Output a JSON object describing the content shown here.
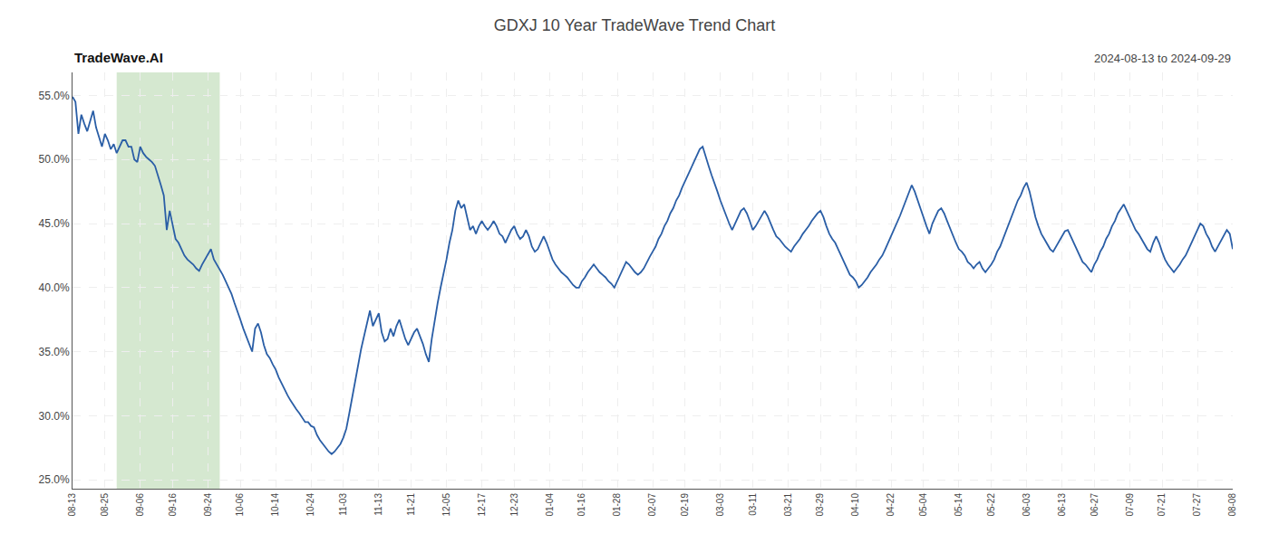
{
  "chart_data": {
    "type": "line",
    "title": "GDXJ 10 Year TradeWave Trend Chart",
    "subtitle": "2024-08-13 to 2024-09-29",
    "annotations": [
      {
        "text": "TradeWave.AI"
      }
    ],
    "color": "#2a5ea6",
    "line_style": "solid",
    "grid": true,
    "highlight_range": [
      15,
      50
    ],
    "highlight_color": "#d5e8d0",
    "ylim": [
      0.243,
      0.568
    ],
    "yticks": [
      {
        "value": 0.25,
        "label": "25.0%"
      },
      {
        "value": 0.3,
        "label": "30.0%"
      },
      {
        "value": 0.35,
        "label": "35.0%"
      },
      {
        "value": 0.4,
        "label": "40.0%"
      },
      {
        "value": 0.45,
        "label": "45.0%"
      },
      {
        "value": 0.5,
        "label": "50.0%"
      },
      {
        "value": 0.55,
        "label": "55.0%"
      }
    ],
    "categories": [
      "08-13",
      null,
      null,
      null,
      null,
      null,
      null,
      null,
      null,
      null,
      null,
      "08-25",
      null,
      null,
      null,
      null,
      null,
      null,
      null,
      null,
      null,
      null,
      null,
      "09-06",
      null,
      null,
      null,
      null,
      null,
      null,
      null,
      null,
      null,
      null,
      "09-16",
      null,
      null,
      null,
      null,
      null,
      null,
      null,
      null,
      null,
      null,
      null,
      "09-24",
      null,
      null,
      null,
      null,
      null,
      null,
      null,
      null,
      null,
      null,
      "10-06",
      null,
      null,
      null,
      null,
      null,
      null,
      null,
      null,
      null,
      null,
      null,
      "10-14",
      null,
      null,
      null,
      null,
      null,
      null,
      null,
      null,
      null,
      null,
      null,
      "10-24",
      null,
      null,
      null,
      null,
      null,
      null,
      null,
      null,
      null,
      null,
      "11-03",
      null,
      null,
      null,
      null,
      null,
      null,
      null,
      null,
      null,
      null,
      null,
      "11-13",
      null,
      null,
      null,
      null,
      null,
      null,
      null,
      null,
      null,
      null,
      "11-21",
      null,
      null,
      null,
      null,
      null,
      null,
      null,
      null,
      null,
      null,
      null,
      "12-05",
      null,
      null,
      null,
      null,
      null,
      null,
      null,
      null,
      null,
      null,
      null,
      "12-17",
      null,
      null,
      null,
      null,
      null,
      null,
      null,
      null,
      null,
      null,
      "12-23",
      null,
      null,
      null,
      null,
      null,
      null,
      null,
      null,
      null,
      null,
      null,
      "01-04",
      null,
      null,
      null,
      null,
      null,
      null,
      null,
      null,
      null,
      null,
      "01-16",
      null,
      null,
      null,
      null,
      null,
      null,
      null,
      null,
      null,
      null,
      null,
      "01-28",
      null,
      null,
      null,
      null,
      null,
      null,
      null,
      null,
      null,
      null,
      null,
      "02-07",
      null,
      null,
      null,
      null,
      null,
      null,
      null,
      null,
      null,
      null,
      "02-19",
      null,
      null,
      null,
      null,
      null,
      null,
      null,
      null,
      null,
      null,
      null,
      "03-03",
      null,
      null,
      null,
      null,
      null,
      null,
      null,
      null,
      null,
      null,
      "03-11",
      null,
      null,
      null,
      null,
      null,
      null,
      null,
      null,
      null,
      null,
      null,
      "03-21",
      null,
      null,
      null,
      null,
      null,
      null,
      null,
      null,
      null,
      null,
      "03-29",
      null,
      null,
      null,
      null,
      null,
      null,
      null,
      null,
      null,
      null,
      null,
      "04-10",
      null,
      null,
      null,
      null,
      null,
      null,
      null,
      null,
      null,
      null,
      null,
      "04-22",
      null,
      null,
      null,
      null,
      null,
      null,
      null,
      null,
      null,
      null,
      "05-04",
      null,
      null,
      null,
      null,
      null,
      null,
      null,
      null,
      null,
      null,
      null,
      "05-14",
      null,
      null,
      null,
      null,
      null,
      null,
      null,
      null,
      null,
      null,
      "05-22",
      null,
      null,
      null,
      null,
      null,
      null,
      null,
      null,
      null,
      null,
      null,
      "06-03",
      null,
      null,
      null,
      null,
      null,
      null,
      null,
      null,
      null,
      null,
      null,
      "06-13",
      null,
      null,
      null,
      null,
      null,
      null,
      null,
      null,
      null,
      null,
      "06-27",
      null,
      null,
      null,
      null,
      null,
      null,
      null,
      null,
      null,
      null,
      null,
      "07-09",
      null,
      null,
      null,
      null,
      null,
      null,
      null,
      null,
      null,
      null,
      "07-21",
      null,
      null,
      null,
      null,
      null,
      null,
      null,
      null,
      null,
      null,
      null,
      "07-27",
      null,
      null,
      null,
      null,
      null,
      null,
      null,
      null,
      null,
      null,
      null,
      "08-08"
    ],
    "values": [
      0.549,
      0.545,
      0.52,
      0.535,
      0.528,
      0.522,
      0.53,
      0.538,
      0.525,
      0.518,
      0.51,
      0.52,
      0.515,
      0.508,
      0.512,
      0.505,
      0.51,
      0.515,
      0.515,
      0.51,
      0.51,
      0.5,
      0.498,
      0.51,
      0.505,
      0.502,
      0.5,
      0.498,
      0.495,
      0.488,
      0.48,
      0.472,
      0.445,
      0.46,
      0.448,
      0.438,
      0.435,
      0.43,
      0.425,
      0.422,
      0.42,
      0.418,
      0.415,
      0.413,
      0.418,
      0.422,
      0.425,
      0.43,
      0.422,
      0.418,
      0.415,
      0.41,
      0.405,
      0.4,
      0.395,
      0.388,
      0.382,
      0.375,
      0.368,
      0.362,
      0.356,
      0.35,
      0.368,
      0.372,
      0.365,
      0.355,
      0.348,
      0.345,
      0.34,
      0.336,
      0.33,
      0.325,
      0.32,
      0.316,
      0.312,
      0.308,
      0.305,
      0.302,
      0.298,
      0.295,
      0.295,
      0.292,
      0.291,
      0.285,
      0.281,
      0.278,
      0.275,
      0.272,
      0.27,
      0.272,
      0.275,
      0.278,
      0.283,
      0.29,
      0.302,
      0.315,
      0.328,
      0.34,
      0.352,
      0.362,
      0.372,
      0.382,
      0.37,
      0.375,
      0.38,
      0.365,
      0.358,
      0.36,
      0.368,
      0.362,
      0.37,
      0.375,
      0.368,
      0.36,
      0.355,
      0.36,
      0.365,
      0.368,
      0.362,
      0.356,
      0.348,
      0.342,
      0.36,
      0.375,
      0.388,
      0.4,
      0.41,
      0.422,
      0.435,
      0.445,
      0.46,
      0.468,
      0.462,
      0.465,
      0.455,
      0.445,
      0.448,
      0.442,
      0.448,
      0.452,
      0.448,
      0.445,
      0.448,
      0.452,
      0.448,
      0.442,
      0.44,
      0.435,
      0.44,
      0.445,
      0.448,
      0.442,
      0.438,
      0.44,
      0.445,
      0.44,
      0.432,
      0.428,
      0.43,
      0.435,
      0.44,
      0.435,
      0.428,
      0.422,
      0.418,
      0.415,
      0.412,
      0.41,
      0.408,
      0.405,
      0.402,
      0.4,
      0.4,
      0.405,
      0.408,
      0.412,
      0.415,
      0.418,
      0.415,
      0.412,
      0.41,
      0.408,
      0.405,
      0.403,
      0.4,
      0.405,
      0.41,
      0.415,
      0.42,
      0.418,
      0.415,
      0.412,
      0.41,
      0.412,
      0.415,
      0.42,
      0.424,
      0.428,
      0.432,
      0.438,
      0.442,
      0.448,
      0.452,
      0.458,
      0.462,
      0.468,
      0.472,
      0.478,
      0.483,
      0.488,
      0.492,
      0.498,
      0.502,
      0.508,
      0.51,
      0.502,
      0.495,
      0.488,
      0.482,
      0.475,
      0.468,
      0.462,
      0.455,
      0.45,
      0.445,
      0.45,
      0.455,
      0.46,
      0.462,
      0.458,
      0.452,
      0.445,
      0.448,
      0.452,
      0.455,
      0.46,
      0.456,
      0.45,
      0.445,
      0.44,
      0.438,
      0.435,
      0.432,
      0.43,
      0.428,
      0.432,
      0.435,
      0.438,
      0.442,
      0.445,
      0.448,
      0.452,
      0.455,
      0.458,
      0.46,
      0.455,
      0.448,
      0.442,
      0.438,
      0.435,
      0.43,
      0.425,
      0.42,
      0.415,
      0.41,
      0.408,
      0.405,
      0.4,
      0.402,
      0.405,
      0.408,
      0.412,
      0.415,
      0.418,
      0.422,
      0.425,
      0.43,
      0.435,
      0.44,
      0.445,
      0.45,
      0.456,
      0.462,
      0.468,
      0.474,
      0.48,
      0.475,
      0.468,
      0.462,
      0.455,
      0.448,
      0.442,
      0.45,
      0.455,
      0.46,
      0.462,
      0.458,
      0.452,
      0.446,
      0.44,
      0.435,
      0.43,
      0.428,
      0.425,
      0.42,
      0.418,
      0.415,
      0.418,
      0.42,
      0.415,
      0.412,
      0.415,
      0.418,
      0.422,
      0.428,
      0.432,
      0.438,
      0.445,
      0.45,
      0.456,
      0.462,
      0.468,
      0.472,
      0.478,
      0.482,
      0.475,
      0.465,
      0.455,
      0.448,
      0.442,
      0.438,
      0.434,
      0.43,
      0.428,
      0.432,
      0.436,
      0.44,
      0.444,
      0.445,
      0.44,
      0.435,
      0.43,
      0.425,
      0.42,
      0.418,
      0.415,
      0.412,
      0.418,
      0.422,
      0.428,
      0.432,
      0.438,
      0.442,
      0.448,
      0.452,
      0.458,
      0.462,
      0.465,
      0.46,
      0.455,
      0.45,
      0.445,
      0.442,
      0.438,
      0.435,
      0.43,
      0.428,
      0.435,
      0.44,
      0.435,
      0.428,
      0.422,
      0.418,
      0.415,
      0.412,
      0.415,
      0.418,
      0.422,
      0.425,
      0.43,
      0.435,
      0.44,
      0.445,
      0.45,
      0.448,
      0.442,
      0.438,
      0.432,
      0.428,
      0.432,
      0.436,
      0.44,
      0.445,
      0.442,
      0.43
    ]
  }
}
